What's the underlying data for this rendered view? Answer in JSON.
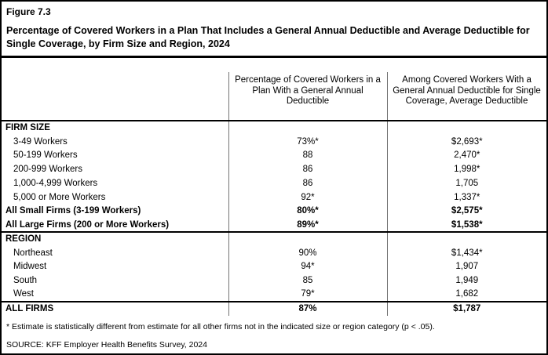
{
  "header": {
    "figure_label": "Figure 7.3",
    "title": "Percentage of Covered Workers in a Plan That Includes a General Annual Deductible and Average Deductible for Single Coverage, by Firm Size and Region, 2024"
  },
  "table": {
    "columns": {
      "row_header": "",
      "pct": "Percentage of Covered Workers in a Plan With a General Annual Deductible",
      "avg": "Among Covered Workers With a General Annual Deductible for Single Coverage, Average Deductible"
    },
    "rows": [
      {
        "label": "FIRM SIZE",
        "pct": "",
        "avg": ""
      },
      {
        "label": "3-49 Workers",
        "pct": "73%*",
        "avg": "$2,693*"
      },
      {
        "label": "50-199 Workers",
        "pct": "88",
        "avg": "2,470*"
      },
      {
        "label": "200-999 Workers",
        "pct": "86",
        "avg": "1,998*"
      },
      {
        "label": "1,000-4,999 Workers",
        "pct": "86",
        "avg": "1,705"
      },
      {
        "label": "5,000 or More Workers",
        "pct": "92*",
        "avg": "1,337*"
      },
      {
        "label": "All Small Firms (3-199 Workers)",
        "pct": "80%*",
        "avg": "$2,575*"
      },
      {
        "label": "All Large Firms (200 or More Workers)",
        "pct": "89%*",
        "avg": "$1,538*"
      },
      {
        "label": "REGION",
        "pct": "",
        "avg": ""
      },
      {
        "label": "Northeast",
        "pct": "90%",
        "avg": "$1,434*"
      },
      {
        "label": "Midwest",
        "pct": "94*",
        "avg": "1,907"
      },
      {
        "label": "South",
        "pct": "85",
        "avg": "1,949"
      },
      {
        "label": "West",
        "pct": "79*",
        "avg": "1,682"
      },
      {
        "label": "ALL FIRMS",
        "pct": "87%",
        "avg": "$1,787"
      }
    ]
  },
  "footnotes": {
    "asterisk": "* Estimate is statistically different from estimate for all other firms not in the indicated size or region category (p < .05).",
    "source": "SOURCE: KFF Employer Health Benefits Survey, 2024"
  }
}
